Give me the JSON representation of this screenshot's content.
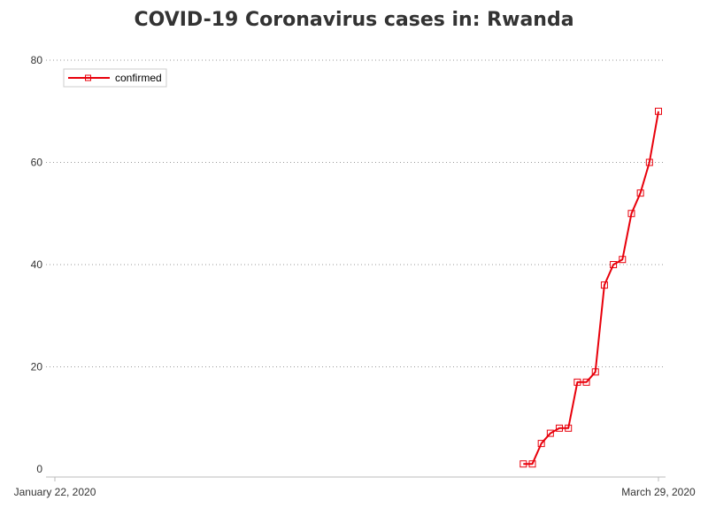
{
  "title": "COVID-19 Coronavirus cases in: Rwanda",
  "colors": {
    "series": "#e8000b",
    "grid": "#999999",
    "axis": "#333333",
    "text": "#333333"
  },
  "chart_data": {
    "type": "line",
    "title": "COVID-19 Coronavirus cases in: Rwanda",
    "xlabel": "",
    "ylabel": "",
    "x_axis": {
      "start": "2020-01-22",
      "end": "2020-03-29",
      "tick_labels": [
        "January 22, 2020",
        "March 29, 2020"
      ]
    },
    "ylim": [
      0,
      80
    ],
    "yticks": [
      0,
      20,
      40,
      60,
      80
    ],
    "grid": "horizontal dotted",
    "legend": {
      "placement": "top-left",
      "entries": [
        "confirmed"
      ]
    },
    "marker": "square",
    "series": [
      {
        "name": "confirmed",
        "points": [
          {
            "x": "2020-03-14",
            "y": 1
          },
          {
            "x": "2020-03-15",
            "y": 1
          },
          {
            "x": "2020-03-16",
            "y": 5
          },
          {
            "x": "2020-03-17",
            "y": 7
          },
          {
            "x": "2020-03-18",
            "y": 8
          },
          {
            "x": "2020-03-19",
            "y": 8
          },
          {
            "x": "2020-03-20",
            "y": 17
          },
          {
            "x": "2020-03-21",
            "y": 17
          },
          {
            "x": "2020-03-22",
            "y": 19
          },
          {
            "x": "2020-03-23",
            "y": 36
          },
          {
            "x": "2020-03-24",
            "y": 40
          },
          {
            "x": "2020-03-25",
            "y": 41
          },
          {
            "x": "2020-03-26",
            "y": 50
          },
          {
            "x": "2020-03-27",
            "y": 54
          },
          {
            "x": "2020-03-28",
            "y": 60
          },
          {
            "x": "2020-03-29",
            "y": 70
          }
        ]
      }
    ]
  }
}
